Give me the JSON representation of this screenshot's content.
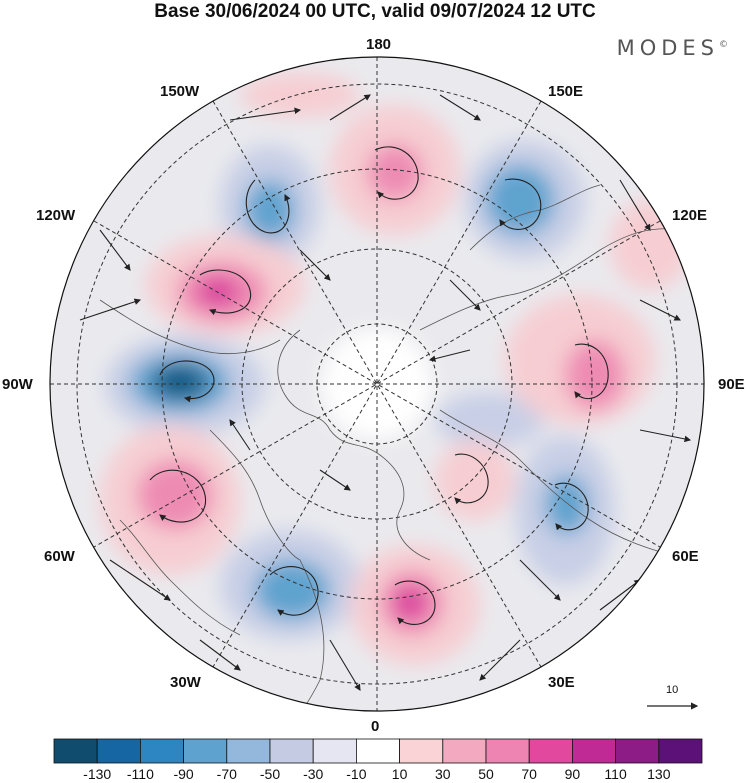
{
  "header": {
    "title": "Base 30/06/2024 00 UTC, valid 09/07/2024 12 UTC",
    "brand": "MODES"
  },
  "map": {
    "longitude_labels": {
      "top": "180",
      "bottom": "0",
      "left": "90W",
      "right": "90E",
      "upper_left_1": "150W",
      "upper_left_2": "120W",
      "upper_right_1": "150E",
      "upper_right_2": "120E",
      "lower_left_1": "60W",
      "lower_left_2": "30W",
      "lower_right_1": "60E",
      "lower_right_2": "30E"
    },
    "reference_vector_label": "10",
    "colors": {
      "neg_strong": "#0b5a85",
      "neg_mid": "#5ea3cf",
      "neg_light": "#c8cfe6",
      "neutral": "#e8e8ec",
      "pos_light": "#f6cdd2",
      "pos_mid": "#ee8bb3",
      "pos_strong": "#d8399c"
    }
  },
  "colorbar": {
    "labels": [
      "-130",
      "-110",
      "-90",
      "-70",
      "-50",
      "-30",
      "-10",
      "10",
      "30",
      "50",
      "70",
      "90",
      "110",
      "130"
    ],
    "colors": [
      "#0f4c6e",
      "#1566a3",
      "#2d86c2",
      "#5ea3cf",
      "#94b7dc",
      "#c4cbe3",
      "#e6e6f2",
      "#ffffff",
      "#f9d3d6",
      "#f3a9bf",
      "#ee84b2",
      "#e1489e",
      "#c02a94",
      "#8e1c86",
      "#5b1178"
    ]
  }
}
